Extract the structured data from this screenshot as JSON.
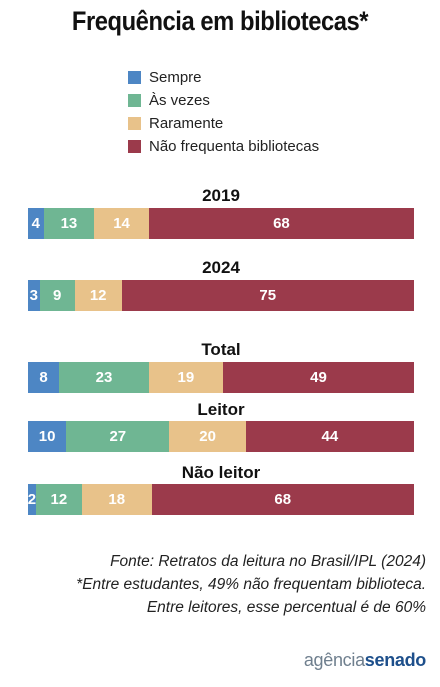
{
  "chart_data": {
    "type": "bar",
    "orientation": "horizontal",
    "stacked": true,
    "normalized_to_100": true,
    "title": "Frequência em bibliotecas*",
    "legend_position": "top",
    "categories": [
      "2019",
      "2024",
      "Total",
      "Leitor",
      "Não leitor"
    ],
    "series": [
      {
        "name": "Sempre",
        "color": "#4d86c4",
        "values": [
          4,
          3,
          8,
          10,
          2
        ]
      },
      {
        "name": "Às vezes",
        "color": "#6fb693",
        "values": [
          13,
          9,
          23,
          27,
          12
        ]
      },
      {
        "name": "Raramente",
        "color": "#e8c28a",
        "values": [
          14,
          12,
          19,
          20,
          18
        ]
      },
      {
        "name": "Não frequenta bibliotecas",
        "color": "#9b3a4b",
        "values": [
          68,
          75,
          49,
          44,
          68
        ]
      }
    ]
  },
  "footnote": {
    "line1": "Fonte: Retratos da leitura no Brasil/IPL (2024)",
    "line2": "*Entre estudantes, 49% não frequentam biblioteca.",
    "line3": "Entre leitores, esse percentual é de 60%"
  },
  "logo": {
    "part1": "agência",
    "part2": "senado"
  }
}
